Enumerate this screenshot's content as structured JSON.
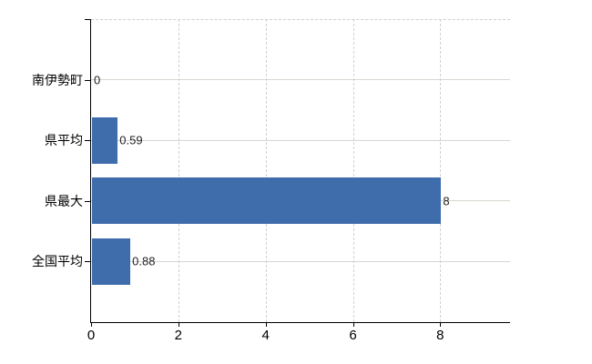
{
  "chart": {
    "background": "#ffffff",
    "bar_color": "#3f6dab",
    "h_grid_color": "#d3d9cf",
    "v_grid_color": "#d0d0d0",
    "axis_color": "#000000",
    "category_label_color": "#000000",
    "value_label_color": "#222222"
  },
  "chart_data": {
    "type": "bar",
    "orientation": "horizontal",
    "categories": [
      "南伊勢町",
      "県平均",
      "県最大",
      "全国平均"
    ],
    "values": [
      0,
      0.59,
      8,
      0.88
    ],
    "value_labels": [
      "0",
      "0.59",
      "8",
      "0.88"
    ],
    "x_ticks": [
      0,
      2,
      4,
      6,
      8
    ],
    "x_tick_labels": [
      "0",
      "2",
      "4",
      "6",
      "8"
    ],
    "xlim": [
      0,
      9.6
    ],
    "xlabel": "",
    "ylabel": "",
    "grid": {
      "horizontal": "solid",
      "vertical": "dashed",
      "top_border": "dashed"
    },
    "legend": "none"
  }
}
